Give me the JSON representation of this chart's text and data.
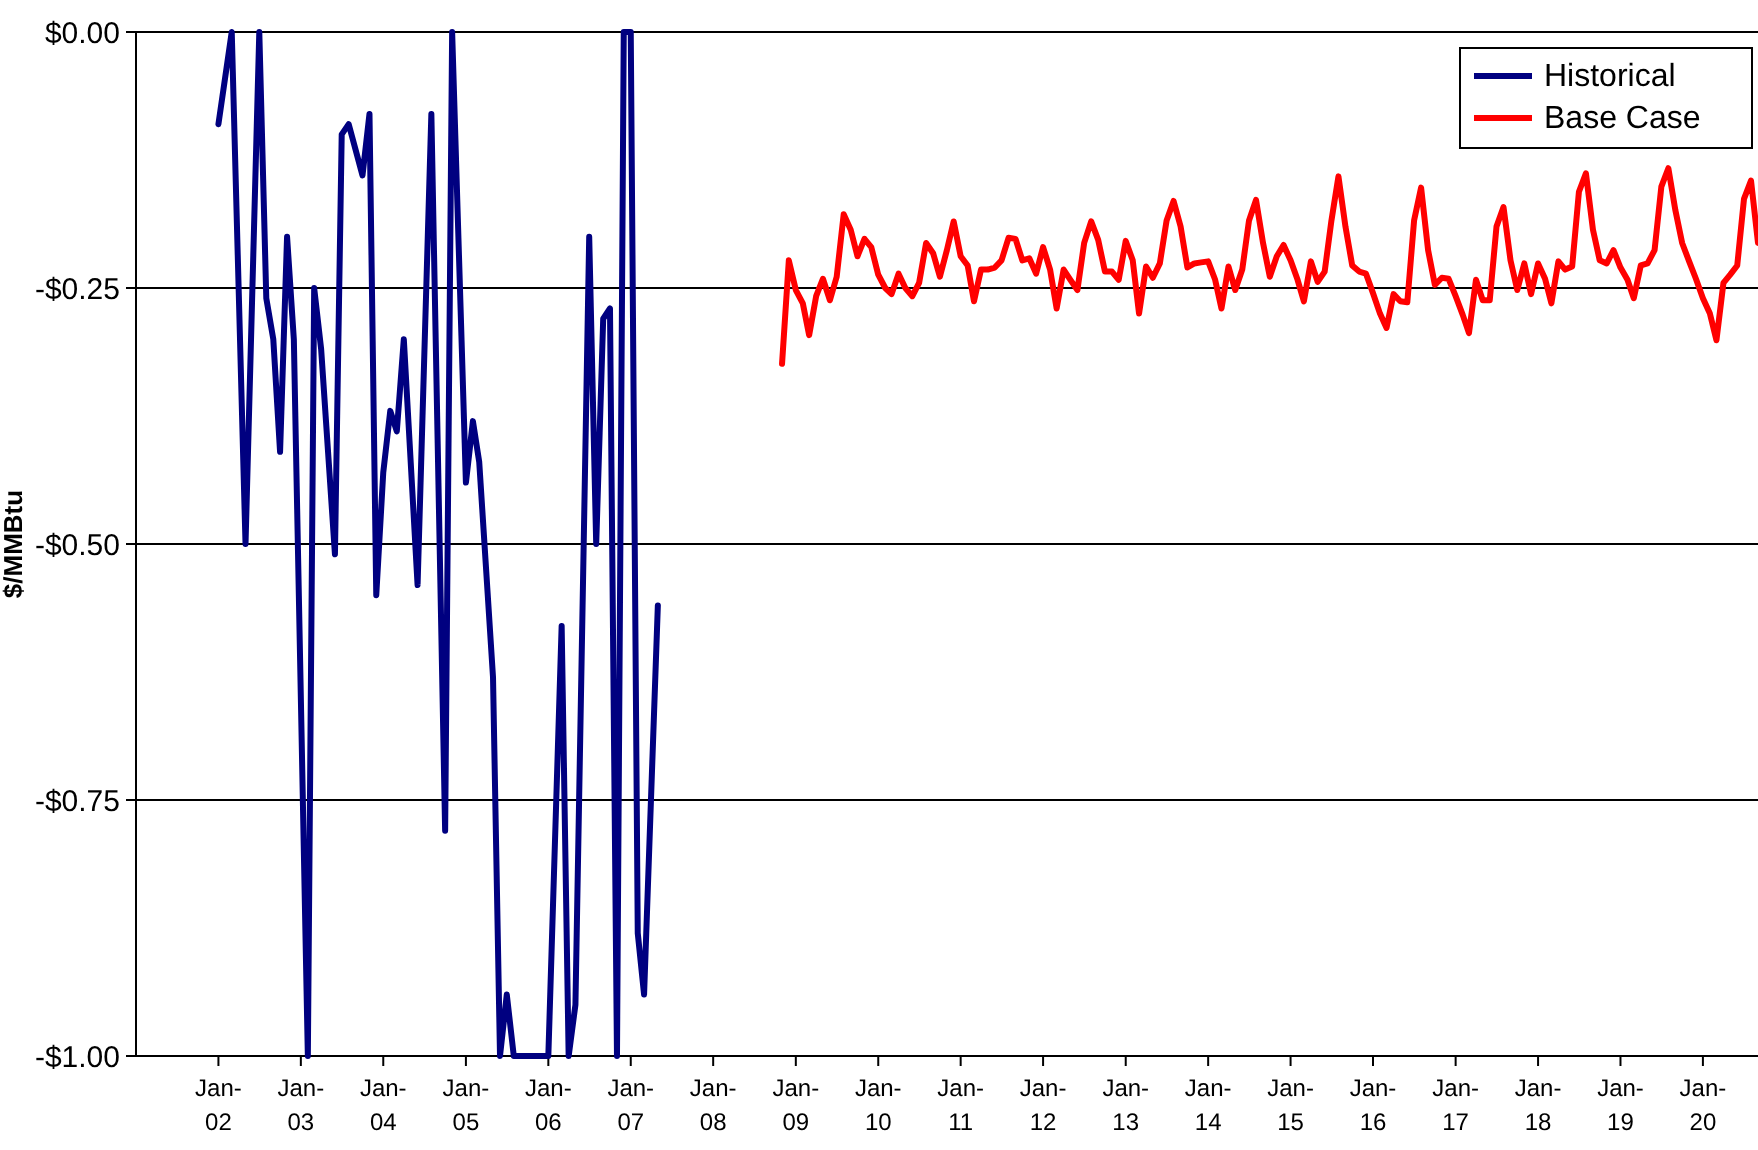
{
  "chart_data": {
    "type": "line",
    "ylabel": "$/MMBtu",
    "xlim": [
      "2001-01",
      "2020-09"
    ],
    "xticks": [
      {
        "value": "2002-01",
        "label": "Jan-02"
      },
      {
        "value": "2003-01",
        "label": "Jan-03"
      },
      {
        "value": "2004-01",
        "label": "Jan-04"
      },
      {
        "value": "2005-01",
        "label": "Jan-05"
      },
      {
        "value": "2006-01",
        "label": "Jan-06"
      },
      {
        "value": "2007-01",
        "label": "Jan-07"
      },
      {
        "value": "2008-01",
        "label": "Jan-08"
      },
      {
        "value": "2009-01",
        "label": "Jan-09"
      },
      {
        "value": "2010-01",
        "label": "Jan-10"
      },
      {
        "value": "2011-01",
        "label": "Jan-11"
      },
      {
        "value": "2012-01",
        "label": "Jan-12"
      },
      {
        "value": "2013-01",
        "label": "Jan-13"
      },
      {
        "value": "2014-01",
        "label": "Jan-14"
      },
      {
        "value": "2015-01",
        "label": "Jan-15"
      },
      {
        "value": "2016-01",
        "label": "Jan-16"
      },
      {
        "value": "2017-01",
        "label": "Jan-17"
      },
      {
        "value": "2018-01",
        "label": "Jan-18"
      },
      {
        "value": "2019-01",
        "label": "Jan-19"
      },
      {
        "value": "2020-01",
        "label": "Jan-20"
      }
    ],
    "ylim": [
      -1,
      0
    ],
    "yticks": [
      {
        "value": -1,
        "label": "-$1.00"
      },
      {
        "value": -0.75,
        "label": "-$0.75"
      },
      {
        "value": -0.5,
        "label": "-$0.50"
      },
      {
        "value": -0.25,
        "label": "-$0.25"
      },
      {
        "value": 0,
        "label": "$0.00"
      }
    ],
    "grid": "y",
    "legend": "top right",
    "line_style": "solid",
    "marker": "none",
    "series": [
      {
        "name": "Historical",
        "color": "#000080",
        "x": [
          "2002-01",
          "2002-03",
          "2002-05",
          "2002-07",
          "2002-08",
          "2002-09",
          "2002-10",
          "2002-11",
          "2002-12",
          "2003-02",
          "2003-03",
          "2003-04",
          "2003-06",
          "2003-07",
          "2003-08",
          "2003-10",
          "2003-11",
          "2003-12",
          "2004-01",
          "2004-02",
          "2004-03",
          "2004-04",
          "2004-06",
          "2004-08",
          "2004-10",
          "2004-11",
          "2005-01",
          "2005-02",
          "2005-03",
          "2005-05",
          "2005-06",
          "2005-07",
          "2005-08",
          "2006-01",
          "2006-03",
          "2006-04",
          "2006-05",
          "2006-07",
          "2006-08",
          "2006-09",
          "2006-10",
          "2006-11",
          "2006-12",
          "2007-01",
          "2007-02",
          "2007-03",
          "2007-05"
        ],
        "values": [
          -0.09,
          0,
          -0.5,
          0,
          -0.26,
          -0.3,
          -0.41,
          -0.2,
          -0.3,
          -1,
          -0.25,
          -0.31,
          -0.51,
          -0.1,
          -0.09,
          -0.14,
          -0.08,
          -0.55,
          -0.43,
          -0.37,
          -0.39,
          -0.3,
          -0.54,
          -0.08,
          -0.78,
          0,
          -0.44,
          -0.38,
          -0.42,
          -0.63,
          -1,
          -0.94,
          -1,
          -1,
          -0.58,
          -1,
          -0.95,
          -0.2,
          -0.5,
          -0.28,
          -0.27,
          -1,
          0,
          0,
          -0.88,
          -0.94,
          -0.56
        ]
      },
      {
        "name": "Base Case",
        "color": "#ff0000",
        "x": [
          "2008-11",
          "2008-12",
          "2009-01",
          "2009-02",
          "2009-03",
          "2009-04",
          "2009-05",
          "2009-06",
          "2009-07",
          "2009-08",
          "2009-09",
          "2009-10",
          "2009-11",
          "2009-12",
          "2010-01",
          "2010-02",
          "2010-03",
          "2010-04",
          "2010-05",
          "2010-06",
          "2010-07",
          "2010-08",
          "2010-09",
          "2010-10",
          "2010-11",
          "2010-12",
          "2011-01",
          "2011-02",
          "2011-03",
          "2011-04",
          "2011-05",
          "2011-06",
          "2011-07",
          "2011-08",
          "2011-09",
          "2011-10",
          "2011-11",
          "2011-12",
          "2012-01",
          "2012-02",
          "2012-03",
          "2012-04",
          "2012-05",
          "2012-06",
          "2012-07",
          "2012-08",
          "2012-09",
          "2012-10",
          "2012-11",
          "2012-12",
          "2013-01",
          "2013-02",
          "2013-03",
          "2013-04",
          "2013-05",
          "2013-06",
          "2013-07",
          "2013-08",
          "2013-09",
          "2013-10",
          "2013-11",
          "2013-12",
          "2014-01",
          "2014-02",
          "2014-03",
          "2014-04",
          "2014-05",
          "2014-06",
          "2014-07",
          "2014-08",
          "2014-09",
          "2014-10",
          "2014-11",
          "2014-12",
          "2015-01",
          "2015-02",
          "2015-03",
          "2015-04",
          "2015-05",
          "2015-06",
          "2015-07",
          "2015-08",
          "2015-09",
          "2015-10",
          "2015-11",
          "2015-12",
          "2016-01",
          "2016-02",
          "2016-03",
          "2016-04",
          "2016-05",
          "2016-06",
          "2016-07",
          "2016-08",
          "2016-09",
          "2016-10",
          "2016-11",
          "2016-12",
          "2017-01",
          "2017-02",
          "2017-03",
          "2017-04",
          "2017-05",
          "2017-06",
          "2017-07",
          "2017-08",
          "2017-09",
          "2017-10",
          "2017-11",
          "2017-12",
          "2018-01",
          "2018-02",
          "2018-03",
          "2018-04",
          "2018-05",
          "2018-06",
          "2018-07",
          "2018-08",
          "2018-09",
          "2018-10",
          "2018-11",
          "2018-12",
          "2019-01",
          "2019-02",
          "2019-03",
          "2019-04",
          "2019-05",
          "2019-06",
          "2019-07",
          "2019-08",
          "2019-09",
          "2019-10",
          "2019-11",
          "2019-12",
          "2020-01",
          "2020-02",
          "2020-03",
          "2020-04",
          "2020-05",
          "2020-06",
          "2020-07",
          "2020-08",
          "2020-09"
        ],
        "values": [
          -0.324,
          -0.223,
          -0.252,
          -0.265,
          -0.296,
          -0.258,
          -0.241,
          -0.262,
          -0.239,
          -0.178,
          -0.193,
          -0.219,
          -0.202,
          -0.21,
          -0.237,
          -0.25,
          -0.256,
          -0.236,
          -0.25,
          -0.258,
          -0.245,
          -0.206,
          -0.216,
          -0.239,
          -0.213,
          -0.185,
          -0.219,
          -0.228,
          -0.263,
          -0.232,
          -0.232,
          -0.23,
          -0.223,
          -0.201,
          -0.202,
          -0.223,
          -0.221,
          -0.236,
          -0.21,
          -0.232,
          -0.27,
          -0.232,
          -0.242,
          -0.252,
          -0.206,
          -0.185,
          -0.203,
          -0.234,
          -0.234,
          -0.242,
          -0.204,
          -0.223,
          -0.275,
          -0.229,
          -0.24,
          -0.226,
          -0.184,
          -0.165,
          -0.19,
          -0.23,
          -0.226,
          -0.225,
          -0.224,
          -0.242,
          -0.27,
          -0.229,
          -0.252,
          -0.232,
          -0.184,
          -0.164,
          -0.206,
          -0.239,
          -0.219,
          -0.208,
          -0.223,
          -0.242,
          -0.263,
          -0.224,
          -0.244,
          -0.234,
          -0.184,
          -0.141,
          -0.19,
          -0.228,
          -0.234,
          -0.236,
          -0.255,
          -0.275,
          -0.289,
          -0.256,
          -0.263,
          -0.264,
          -0.184,
          -0.152,
          -0.213,
          -0.247,
          -0.24,
          -0.241,
          -0.258,
          -0.276,
          -0.294,
          -0.242,
          -0.262,
          -0.262,
          -0.19,
          -0.171,
          -0.223,
          -0.252,
          -0.226,
          -0.256,
          -0.226,
          -0.241,
          -0.265,
          -0.224,
          -0.232,
          -0.229,
          -0.156,
          -0.138,
          -0.193,
          -0.223,
          -0.226,
          -0.213,
          -0.23,
          -0.242,
          -0.26,
          -0.228,
          -0.226,
          -0.213,
          -0.151,
          -0.133,
          -0.174,
          -0.206,
          -0.224,
          -0.241,
          -0.26,
          -0.275,
          -0.301,
          -0.245,
          -0.237,
          -0.228,
          -0.163,
          -0.145,
          -0.206
        ]
      }
    ]
  }
}
